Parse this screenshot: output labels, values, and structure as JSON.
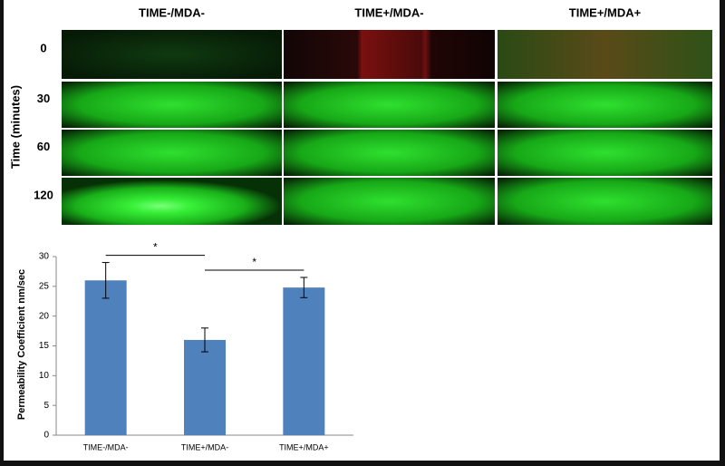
{
  "image_grid": {
    "columns": [
      "TIME-/MDA-",
      "TIME+/MDA-",
      "TIME+/MDA+"
    ],
    "rows": [
      0,
      30,
      60,
      120
    ],
    "row_axis_label": "Time (minutes)"
  },
  "chart_data": {
    "type": "bar",
    "ylabel": "Permeability Coefficient nm/sec",
    "categories": [
      "TIME-/MDA-",
      "TIME+/MDA-",
      "TIME+/MDA+"
    ],
    "values": [
      26,
      16,
      24.8
    ],
    "errors": [
      3,
      2,
      1.7
    ],
    "color": "#4f81bd",
    "ylim": [
      0,
      30
    ],
    "yticks": [
      0,
      5,
      10,
      15,
      20,
      25,
      30
    ],
    "grid": false,
    "annotations": [
      {
        "text": "*",
        "between": [
          "TIME-/MDA-",
          "TIME+/MDA-"
        ]
      },
      {
        "text": "*",
        "between": [
          "TIME+/MDA-",
          "TIME+/MDA+"
        ]
      }
    ]
  }
}
